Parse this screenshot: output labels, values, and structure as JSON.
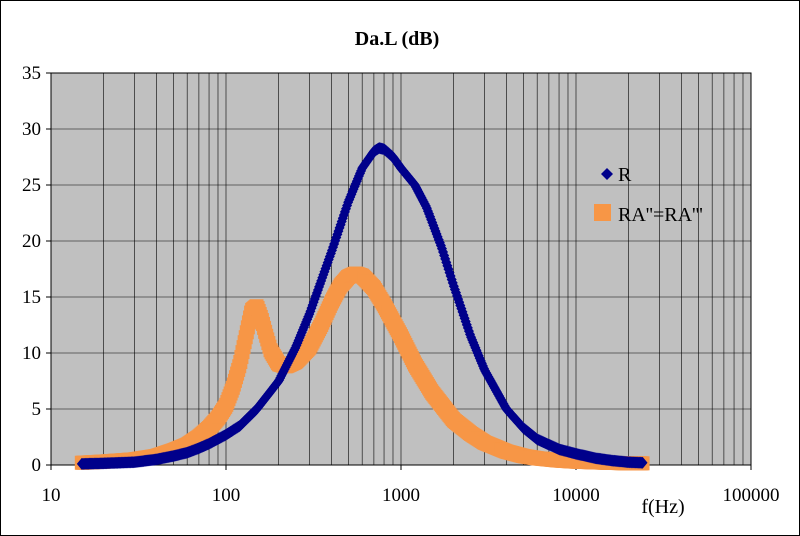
{
  "chart_data": {
    "type": "scatter",
    "title": "Da.L (dB)",
    "xlabel": "f(Hz)",
    "ylabel": "",
    "x_scale": "log",
    "xlim": [
      10,
      100000
    ],
    "ylim": [
      0,
      35
    ],
    "x_ticks": [
      "10",
      "100",
      "1000",
      "10000",
      "100000"
    ],
    "y_ticks": [
      "0",
      "5",
      "10",
      "15",
      "20",
      "25",
      "30",
      "35"
    ],
    "grid": true,
    "plot_background": "#c0c0c0",
    "legend_position": "right",
    "series": [
      {
        "name": "R",
        "color": "#00008b",
        "marker": "diamond",
        "points": [
          [
            15,
            0.1
          ],
          [
            20,
            0.15
          ],
          [
            30,
            0.25
          ],
          [
            40,
            0.5
          ],
          [
            50,
            0.8
          ],
          [
            60,
            1.1
          ],
          [
            70,
            1.5
          ],
          [
            80,
            1.9
          ],
          [
            100,
            2.7
          ],
          [
            120,
            3.5
          ],
          [
            150,
            5.0
          ],
          [
            200,
            7.5
          ],
          [
            250,
            10.5
          ],
          [
            300,
            13.5
          ],
          [
            400,
            19.0
          ],
          [
            500,
            23.5
          ],
          [
            600,
            26.5
          ],
          [
            700,
            28.0
          ],
          [
            750,
            28.3
          ],
          [
            800,
            28.2
          ],
          [
            900,
            27.5
          ],
          [
            1000,
            26.5
          ],
          [
            1200,
            25.0
          ],
          [
            1400,
            23.0
          ],
          [
            1700,
            19.5
          ],
          [
            2000,
            16.0
          ],
          [
            2500,
            11.5
          ],
          [
            3000,
            8.5
          ],
          [
            4000,
            5.0
          ],
          [
            5000,
            3.3
          ],
          [
            6000,
            2.3
          ],
          [
            8000,
            1.4
          ],
          [
            10000,
            1.0
          ],
          [
            13000,
            0.6
          ],
          [
            16000,
            0.4
          ],
          [
            20000,
            0.25
          ],
          [
            24000,
            0.2
          ]
        ]
      },
      {
        "name": "RA''=RA'''",
        "color": "#f79646",
        "marker": "square",
        "points": [
          [
            15,
            0.2
          ],
          [
            20,
            0.3
          ],
          [
            30,
            0.5
          ],
          [
            40,
            0.8
          ],
          [
            50,
            1.3
          ],
          [
            60,
            1.8
          ],
          [
            70,
            2.5
          ],
          [
            80,
            3.3
          ],
          [
            90,
            4.2
          ],
          [
            100,
            5.3
          ],
          [
            110,
            7.0
          ],
          [
            120,
            9.0
          ],
          [
            130,
            11.5
          ],
          [
            140,
            13.8
          ],
          [
            150,
            14.2
          ],
          [
            160,
            13.0
          ],
          [
            170,
            11.5
          ],
          [
            180,
            10.2
          ],
          [
            200,
            9.0
          ],
          [
            220,
            8.8
          ],
          [
            250,
            9.2
          ],
          [
            300,
            10.5
          ],
          [
            350,
            12.5
          ],
          [
            400,
            14.5
          ],
          [
            450,
            16.0
          ],
          [
            500,
            16.8
          ],
          [
            550,
            17.1
          ],
          [
            600,
            16.9
          ],
          [
            700,
            15.8
          ],
          [
            800,
            14.3
          ],
          [
            1000,
            11.5
          ],
          [
            1200,
            9.0
          ],
          [
            1500,
            6.5
          ],
          [
            2000,
            4.0
          ],
          [
            2500,
            2.8
          ],
          [
            3000,
            2.0
          ],
          [
            4000,
            1.2
          ],
          [
            5000,
            0.8
          ],
          [
            6000,
            0.6
          ],
          [
            8000,
            0.4
          ],
          [
            10000,
            0.3
          ],
          [
            15000,
            0.2
          ],
          [
            20000,
            0.15
          ],
          [
            24000,
            0.15
          ]
        ]
      }
    ]
  }
}
